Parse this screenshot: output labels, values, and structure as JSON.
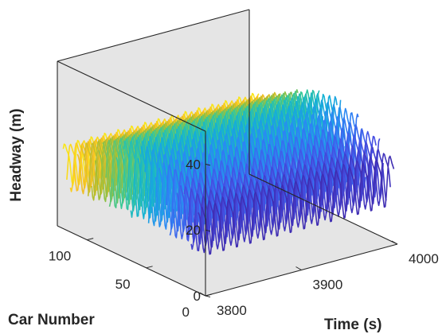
{
  "chart_data": {
    "type": "line",
    "style": "3d-waterfall",
    "title": "",
    "xlabel": "Time (s)",
    "ylabel": "Car Number",
    "zlabel": "Headway (m)",
    "xlim": [
      3800,
      4000
    ],
    "ylim": [
      0,
      125
    ],
    "zlim": [
      0,
      50
    ],
    "xticks": [
      "3800",
      "3900",
      "4000"
    ],
    "yticks": [
      "0",
      "50",
      "100"
    ],
    "zticks": [
      "0",
      "20",
      "40"
    ],
    "grid": false,
    "colormap": "parula",
    "series_count": 40,
    "car_numbers": [
      3,
      6,
      9,
      12,
      15,
      18,
      21,
      24,
      27,
      30,
      33,
      36,
      39,
      42,
      45,
      48,
      51,
      54,
      57,
      60,
      63,
      66,
      69,
      72,
      75,
      78,
      81,
      84,
      87,
      90,
      93,
      96,
      99,
      102,
      105,
      108,
      111,
      114,
      117,
      120
    ],
    "headway_mean": [
      20,
      20.5,
      21,
      21.5,
      22,
      22.5,
      23,
      23.5,
      24,
      24.5,
      25,
      25.3,
      25.6,
      25.9,
      26.1,
      26.3,
      26.4,
      26.5,
      26.5,
      26.4,
      26.3,
      26.1,
      25.9,
      25.6,
      25.3,
      25,
      24.6,
      24.2,
      23.8,
      23.4,
      23,
      22.6,
      22.2,
      21.8,
      21.4,
      21,
      20.7,
      20.4,
      20.2,
      20
    ],
    "headway_amplitude": [
      7,
      7,
      7.5,
      7.5,
      8,
      8,
      8.5,
      8.5,
      9,
      9,
      9.5,
      9.5,
      10,
      10,
      10,
      10.5,
      10.5,
      10.5,
      10.5,
      10.5,
      10.5,
      10,
      10,
      10,
      9.5,
      9.5,
      9,
      9,
      8.5,
      8.5,
      8,
      8,
      7.5,
      7.5,
      7,
      7,
      6.5,
      6.5,
      6,
      6
    ],
    "oscillation_period_s": 14
  }
}
